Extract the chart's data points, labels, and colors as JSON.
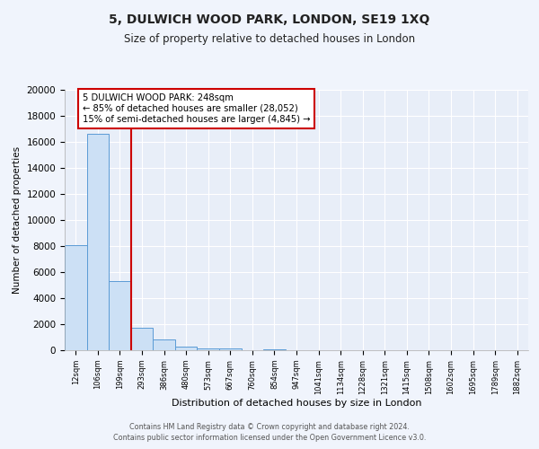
{
  "title": "5, DULWICH WOOD PARK, LONDON, SE19 1XQ",
  "subtitle": "Size of property relative to detached houses in London",
  "xlabel": "Distribution of detached houses by size in London",
  "ylabel": "Number of detached properties",
  "categories": [
    "12sqm",
    "106sqm",
    "199sqm",
    "293sqm",
    "386sqm",
    "480sqm",
    "573sqm",
    "667sqm",
    "760sqm",
    "854sqm",
    "947sqm",
    "1041sqm",
    "1134sqm",
    "1228sqm",
    "1321sqm",
    "1415sqm",
    "1508sqm",
    "1602sqm",
    "1695sqm",
    "1789sqm",
    "1882sqm"
  ],
  "values": [
    8100,
    16600,
    5300,
    1750,
    800,
    280,
    150,
    110,
    0,
    100,
    0,
    0,
    0,
    0,
    0,
    0,
    0,
    0,
    0,
    0,
    0
  ],
  "bar_color": "#cce0f5",
  "bar_edge_color": "#5b9bd5",
  "vline_color": "#cc0000",
  "annotation_title": "5 DULWICH WOOD PARK: 248sqm",
  "annotation_line1": "← 85% of detached houses are smaller (28,052)",
  "annotation_line2": "15% of semi-detached houses are larger (4,845) →",
  "annotation_box_color": "#ffffff",
  "annotation_box_edge": "#cc0000",
  "ylim": [
    0,
    20000
  ],
  "yticks": [
    0,
    2000,
    4000,
    6000,
    8000,
    10000,
    12000,
    14000,
    16000,
    18000,
    20000
  ],
  "fig_background": "#f0f4fc",
  "plot_background": "#e8eef8",
  "grid_color": "#ffffff",
  "footer1": "Contains HM Land Registry data © Crown copyright and database right 2024.",
  "footer2": "Contains public sector information licensed under the Open Government Licence v3.0."
}
